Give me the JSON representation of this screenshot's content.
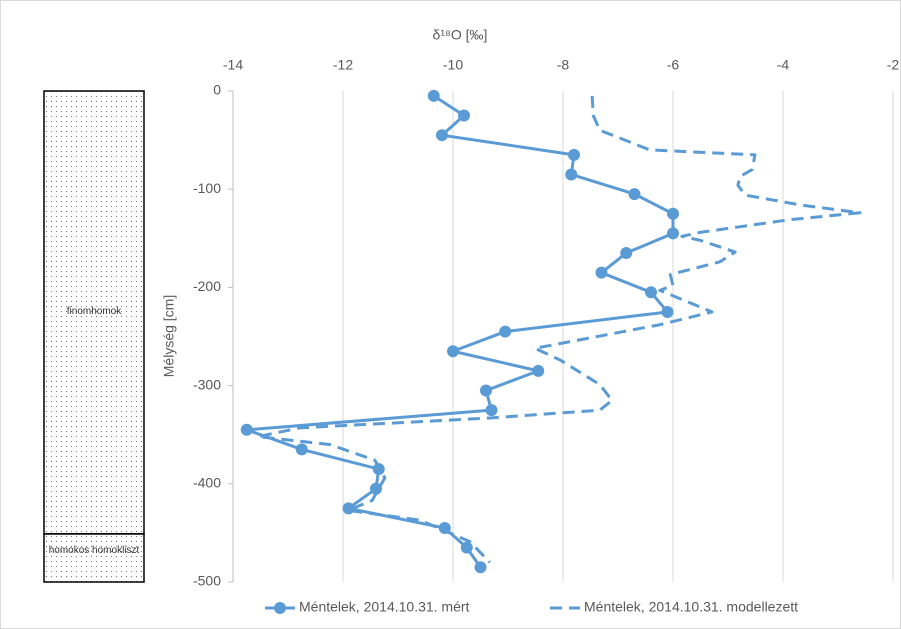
{
  "chart_data": {
    "type": "profile",
    "title": "δ¹⁸O [‰]",
    "y_label": "Mélység [cm]",
    "xlim": [
      -14,
      -2
    ],
    "xticks": [
      -14,
      -12,
      -10,
      -8,
      -6,
      -4,
      -2
    ],
    "ylim": [
      -500,
      0
    ],
    "yticks": [
      0,
      -100,
      -200,
      -300,
      -400,
      -500
    ],
    "grid": true,
    "legend": "bottom",
    "series": [
      {
        "name": "Méntelek, 2014.10.31. mért",
        "color": "#5b9bd5",
        "style": "solid",
        "markers": true,
        "x": [
          -10.35,
          -9.8,
          -10.2,
          -7.8,
          -7.85,
          -6.7,
          -6.0,
          -6.0,
          -6.85,
          -7.3,
          -6.4,
          -6.1,
          -9.05,
          -10.0,
          -8.45,
          -9.4,
          -9.3,
          -13.75,
          -12.75,
          -11.35,
          -11.4,
          -11.9,
          -10.15,
          -9.75,
          -9.5
        ],
        "values": [
          -5,
          -25,
          -45,
          -65,
          -85,
          -105,
          -125,
          -145,
          -165,
          -185,
          -205,
          -225,
          -245,
          -265,
          -285,
          -305,
          -325,
          -345,
          -365,
          -385,
          -405,
          -425,
          -445,
          -465,
          -485
        ]
      },
      {
        "name": "Méntelek, 2014.10.31. modellezett",
        "color": "#5b9bd5",
        "style": "dashed",
        "markers": false,
        "x": [
          -7.47,
          -7.45,
          -7.33,
          -6.42,
          -4.51,
          -4.56,
          -4.78,
          -4.82,
          -4.69,
          -3.69,
          -2.6,
          -3.87,
          -5.51,
          -5.84,
          -5.51,
          -4.87,
          -5.15,
          -6.05,
          -6.0,
          -6.24,
          -5.29,
          -6.24,
          -8.51,
          -8.05,
          -7.33,
          -7.11,
          -7.33,
          -9.33,
          -12.78,
          -13.55,
          -12.24,
          -11.42,
          -11.24,
          -11.47,
          -11.91,
          -10.6,
          -9.69,
          -9.33
        ],
        "values": [
          -5,
          -25,
          -40,
          -60,
          -65,
          -80,
          -87,
          -96,
          -106,
          -116,
          -124,
          -131,
          -144,
          -148,
          -152,
          -164,
          -174,
          -187,
          -198,
          -203,
          -225,
          -238,
          -262,
          -274,
          -299,
          -315,
          -325,
          -333,
          -343,
          -352,
          -360,
          -376,
          -394,
          -417,
          -427,
          -437,
          -459,
          -480
        ]
      }
    ],
    "lithology": [
      {
        "label": "finomhomok",
        "top": 0,
        "bottom": -451
      },
      {
        "label": "homokos homokliszt",
        "top": -451,
        "bottom": -500
      }
    ]
  }
}
